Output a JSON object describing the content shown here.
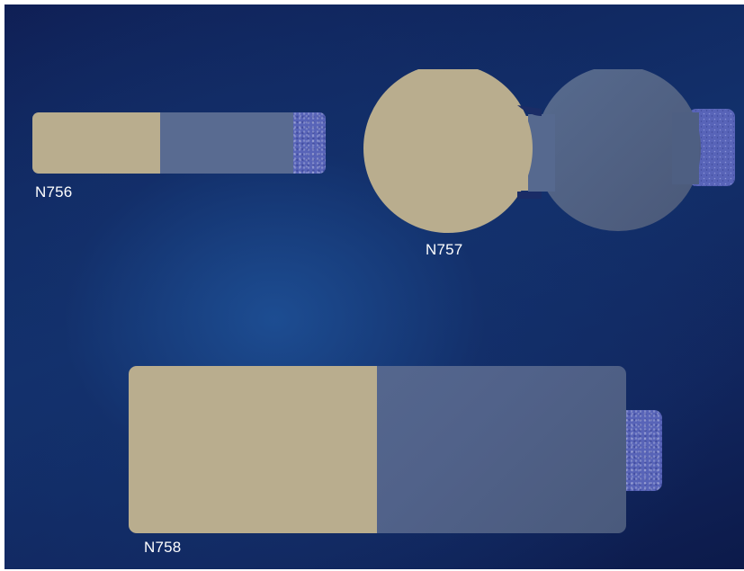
{
  "products": [
    {
      "code": "N756",
      "shape": "rectangle-small"
    },
    {
      "code": "N757",
      "shape": "double-circle"
    },
    {
      "code": "N758",
      "shape": "rectangle-large"
    }
  ],
  "colors": {
    "background_dark": "#0f1f55",
    "background_light": "#1e5096",
    "tan_pad": "#b9ad8e",
    "gray_blue_film": "#56698f",
    "blue_tab": "#5864b8",
    "label_text": "#ffffff"
  }
}
